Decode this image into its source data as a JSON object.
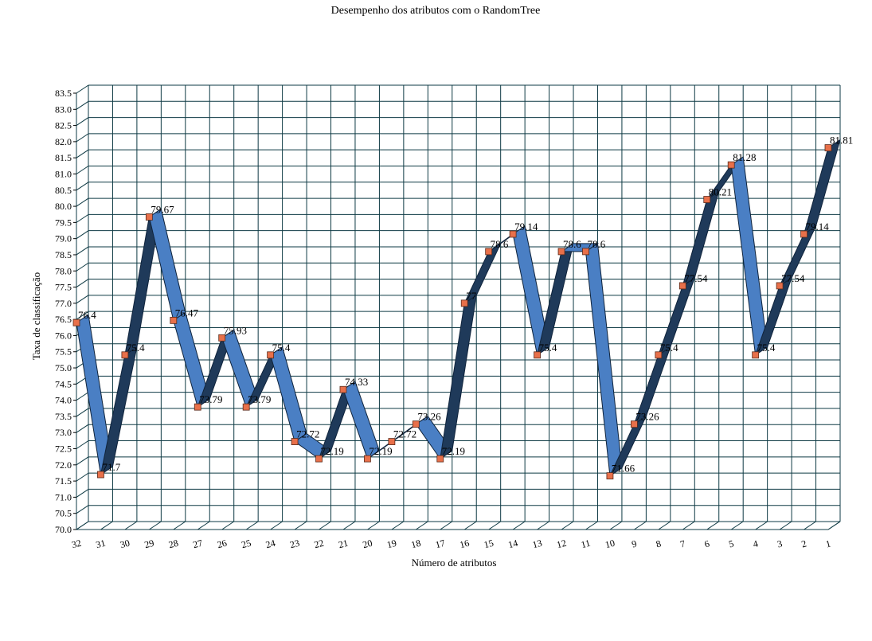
{
  "chart_data": {
    "type": "line",
    "title": "Desempenho dos atributos com o RandomTree",
    "xlabel": "Número de atributos",
    "ylabel": "Taxa de classificação",
    "ylim": [
      70.0,
      83.5
    ],
    "y_ticks": [
      "70.0",
      "70.5",
      "71.0",
      "71.5",
      "72.0",
      "72.5",
      "73.0",
      "73.5",
      "74.0",
      "74.5",
      "75.0",
      "75.5",
      "76.0",
      "76.5",
      "77.0",
      "77.5",
      "78.0",
      "78.5",
      "79.0",
      "79.5",
      "80.0",
      "80.5",
      "81.0",
      "81.5",
      "82.0",
      "82.5",
      "83.0",
      "83.5"
    ],
    "categories": [
      "32",
      "31",
      "30",
      "29",
      "28",
      "27",
      "26",
      "25",
      "24",
      "23",
      "22",
      "21",
      "20",
      "19",
      "18",
      "17",
      "16",
      "15",
      "14",
      "13",
      "12",
      "11",
      "10",
      "9",
      "8",
      "7",
      "6",
      "5",
      "4",
      "3",
      "2",
      "1"
    ],
    "values": [
      76.4,
      71.7,
      75.4,
      79.67,
      76.47,
      73.79,
      75.93,
      73.79,
      75.4,
      72.72,
      72.19,
      74.33,
      72.19,
      72.72,
      73.26,
      72.19,
      77.0,
      78.6,
      79.14,
      75.4,
      78.6,
      78.6,
      71.66,
      73.26,
      75.4,
      77.54,
      80.21,
      81.28,
      75.4,
      77.54,
      79.14,
      81.81
    ],
    "data_labels": [
      "76.4",
      "71.7",
      "75.4",
      "79.67",
      "76.47",
      "73.79",
      "75.93",
      "73.79",
      "75.4",
      "72.72",
      "72.19",
      "74.33",
      "72.19",
      "72.72",
      "73.26",
      "72.19",
      "77",
      "78.6",
      "79.14",
      "75.4",
      "78.6",
      "78.6",
      "71.66",
      "73.26",
      "75.4",
      "77.54",
      "80.21",
      "81.28",
      "75.4",
      "77.54",
      "79.14",
      "81.81"
    ],
    "grid": true,
    "legend": "none",
    "colors": {
      "ribbon_light": "#4a7fc4",
      "ribbon_dark": "#1f3a5a",
      "marker": "#e8704a",
      "grid": "#0e3a44"
    }
  }
}
